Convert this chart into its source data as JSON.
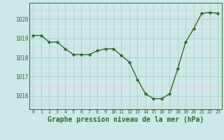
{
  "x": [
    0,
    1,
    2,
    3,
    4,
    5,
    6,
    7,
    8,
    9,
    10,
    11,
    12,
    13,
    14,
    15,
    16,
    17,
    18,
    19,
    20,
    21,
    22,
    23
  ],
  "y": [
    1019.15,
    1019.15,
    1018.8,
    1018.8,
    1018.45,
    1018.15,
    1018.15,
    1018.15,
    1018.35,
    1018.45,
    1018.45,
    1018.1,
    1017.75,
    1016.85,
    1016.1,
    1015.85,
    1015.85,
    1016.1,
    1017.4,
    1018.8,
    1019.5,
    1020.3,
    1020.35,
    1020.3
  ],
  "line_color": "#2d6a2d",
  "marker": "D",
  "marker_size": 2.2,
  "line_width": 1.0,
  "bg_color": "#cce8e8",
  "grid_color_major": "#b0cccc",
  "grid_color_minor": "#dce8e8",
  "title": "Graphe pression niveau de la mer (hPa)",
  "title_fontsize": 7.0,
  "tick_color": "#2d6a2d",
  "spine_color": "#2d6a2d",
  "ylabel_ticks": [
    1016,
    1017,
    1018,
    1019,
    1020
  ],
  "ylim": [
    1015.3,
    1020.85
  ],
  "xlim": [
    -0.5,
    23.5
  ]
}
